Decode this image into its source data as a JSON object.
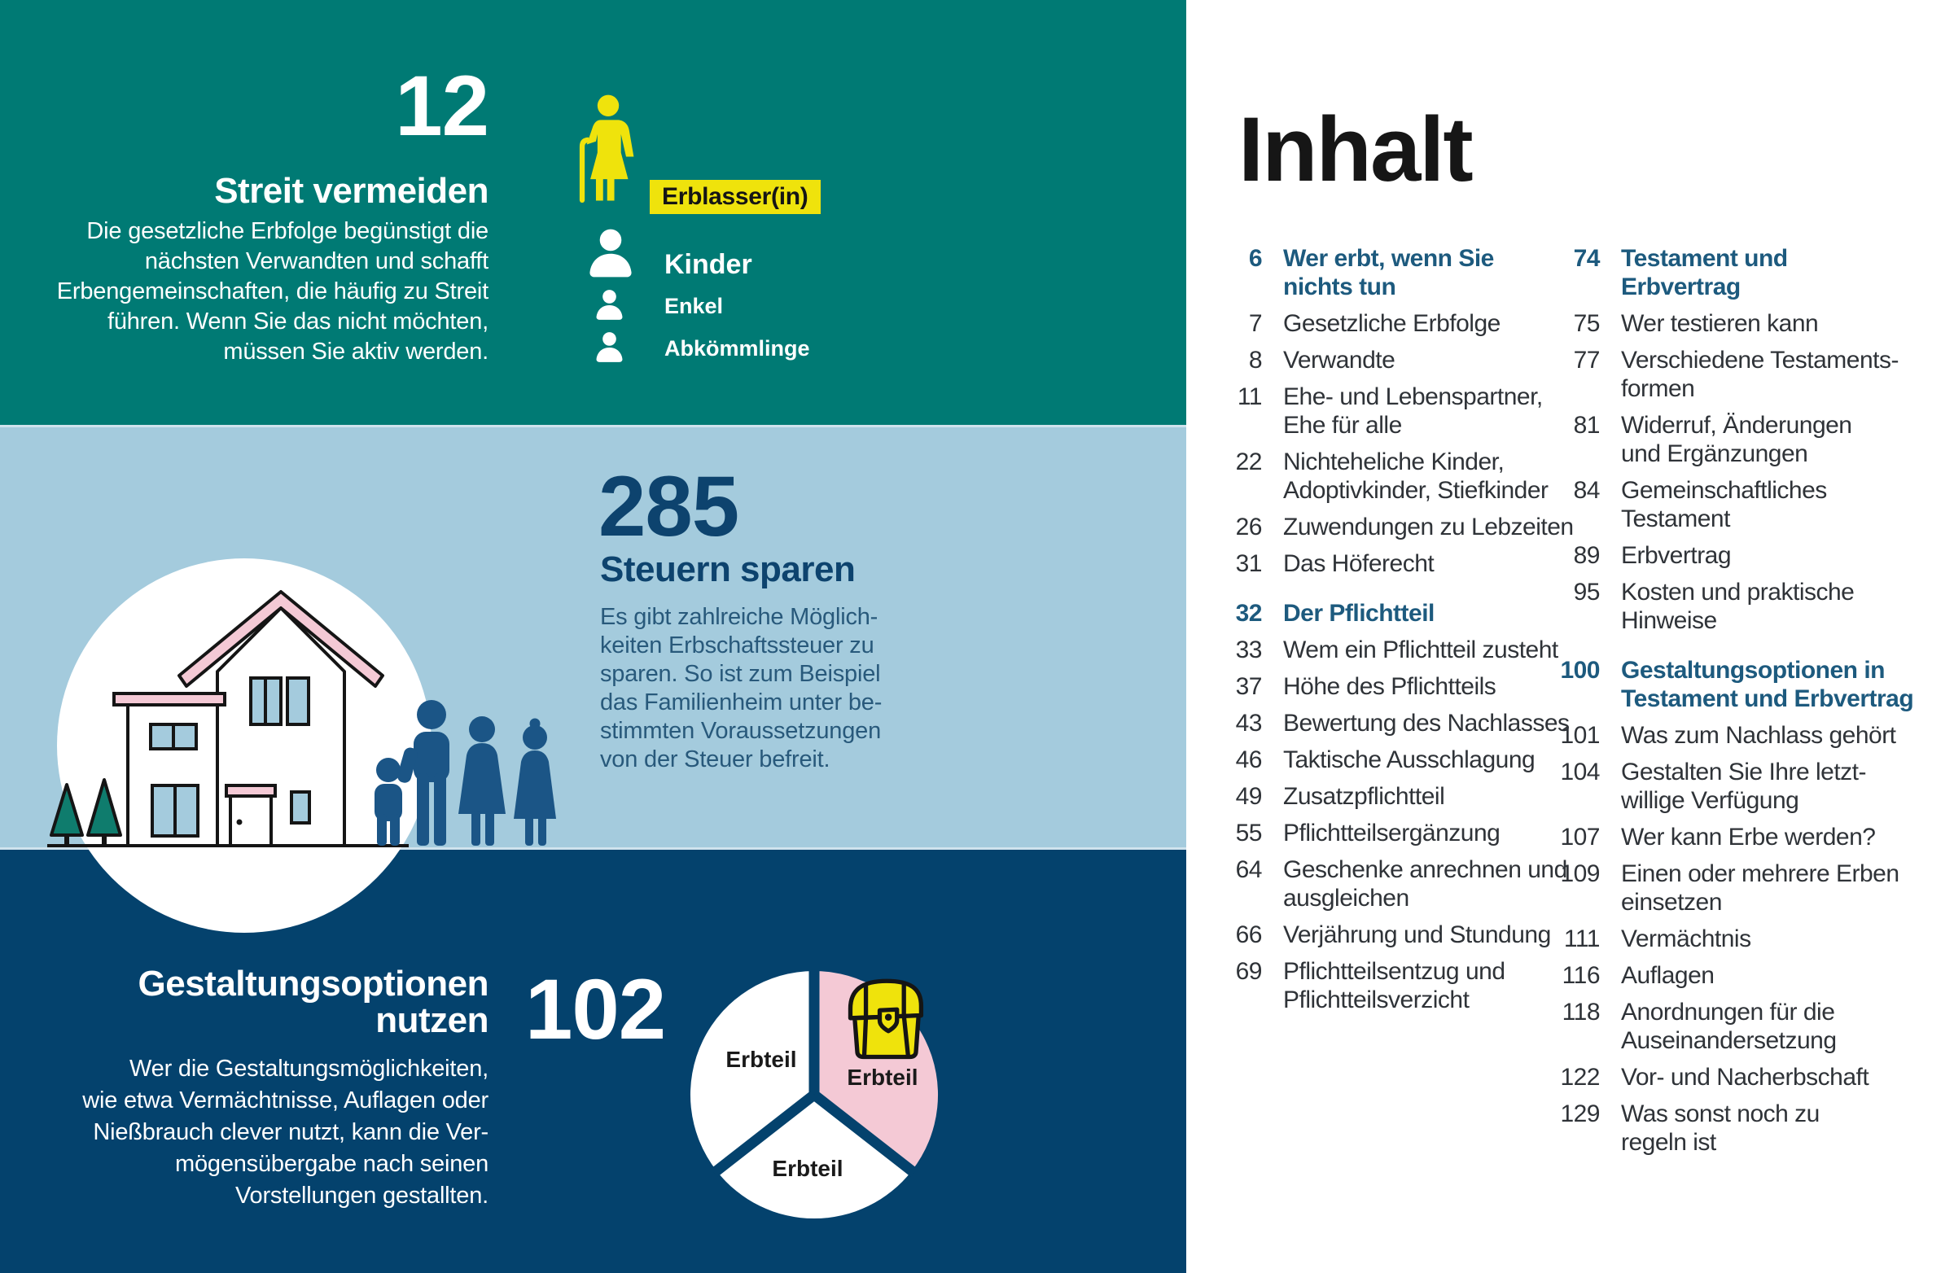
{
  "colors": {
    "teal": "#007a74",
    "light_blue": "#a4cbdd",
    "navy": "#04426d",
    "figure_blue": "#1b5586",
    "steel_blue": "#1d5a7e",
    "yellow": "#efe30c",
    "pink": "#f4c9d5",
    "tree_green": "#0f7c6d",
    "toc_text": "#2f3338",
    "body_blue": "#28597b",
    "number_navy": "#0d436e"
  },
  "infographic": {
    "panel_streit": {
      "number": "12",
      "title": "Streit vermeiden",
      "body": "Die gesetzliche Erbfolge begünstigt die\nnächsten Verwandten und schafft\nErbengemeinschaften, die häufig zu Streit\nführen. Wenn Sie das nicht möchten,\nmüssen Sie aktiv werden.",
      "legend": {
        "erblasser": {
          "label": "Erblasser(in)",
          "icon": "elderly-woman-cane-icon"
        },
        "items": [
          {
            "label": "Kinder",
            "icon": "person-bust-icon",
            "size": "large"
          },
          {
            "label": "Enkel",
            "icon": "person-bust-icon",
            "size": "small"
          },
          {
            "label": "Abkömmlinge",
            "icon": "person-bust-icon",
            "size": "small"
          }
        ]
      }
    },
    "panel_steuern": {
      "number": "285",
      "title": "Steuern sparen",
      "body": "Es gibt zahlreiche Möglich-\nkeiten Erbschaftssteuer zu\nsparen. So ist zum Beispiel\ndas Familienheim unter be-\nstimmten Voraussetzungen\nvon der Steuer befreit.",
      "illustration": "house-family-trees-in-circle"
    },
    "panel_gestaltung": {
      "number": "102",
      "title": "Gestaltungsoptionen\nnutzen",
      "body": "Wer die Gestaltungsmöglichkeiten,\nwie etwa Vermächtnisse, Auflagen oder\nNießbrauch clever nutzt, kann die Ver-\nmögensübergabe nach seinen\nVorstellungen gestallten.",
      "pie": {
        "type": "pie",
        "slices": [
          {
            "label": "Erbteil",
            "color": "white"
          },
          {
            "label": "Erbteil",
            "color": "pink",
            "icon": "treasure-chest-icon"
          },
          {
            "label": "Erbteil",
            "color": "white"
          }
        ]
      }
    }
  },
  "toc": {
    "title": "Inhalt",
    "columns": [
      {
        "sections": [
          {
            "page": "6",
            "title": "Wer erbt, wenn Sie\nnichts tun",
            "items": [
              {
                "page": "7",
                "title": "Gesetzliche Erbfolge"
              },
              {
                "page": "8",
                "title": "Verwandte"
              },
              {
                "page": "11",
                "title": "Ehe- und Lebenspartner,\nEhe für alle"
              },
              {
                "page": "22",
                "title": "Nichteheliche Kinder,\nAdoptivkinder, Stiefkinder"
              },
              {
                "page": "26",
                "title": "Zuwendungen zu Lebzeiten"
              },
              {
                "page": "31",
                "title": "Das Höferecht"
              }
            ]
          },
          {
            "page": "32",
            "title": "Der Pflichtteil",
            "items": [
              {
                "page": "33",
                "title": "Wem ein Pflichtteil zusteht"
              },
              {
                "page": "37",
                "title": "Höhe des Pflichtteils"
              },
              {
                "page": "43",
                "title": "Bewertung des Nachlasses"
              },
              {
                "page": "46",
                "title": "Taktische Ausschlagung"
              },
              {
                "page": "49",
                "title": "Zusatzpflichtteil"
              },
              {
                "page": "55",
                "title": "Pflichtteilsergänzung"
              },
              {
                "page": "64",
                "title": "Geschenke anrechnen und\nausgleichen"
              },
              {
                "page": "66",
                "title": "Verjährung und Stundung"
              },
              {
                "page": "69",
                "title": "Pflichtteilsentzug und\nPflichtteilsverzicht"
              }
            ]
          }
        ]
      },
      {
        "sections": [
          {
            "page": "74",
            "title": "Testament und\nErbvertrag",
            "items": [
              {
                "page": "75",
                "title": "Wer testieren kann"
              },
              {
                "page": "77",
                "title": "Verschiedene Testaments-\nformen"
              },
              {
                "page": "81",
                "title": "Widerruf, Änderungen\nund Ergänzungen"
              },
              {
                "page": "84",
                "title": "Gemeinschaftliches\nTestament"
              },
              {
                "page": "89",
                "title": "Erbvertrag"
              },
              {
                "page": "95",
                "title": "Kosten und praktische\nHinweise"
              }
            ]
          },
          {
            "page": "100",
            "title": "Gestaltungsoptionen in\nTestament und Erbvertrag",
            "items": [
              {
                "page": "101",
                "title": "Was zum Nachlass gehört"
              },
              {
                "page": "104",
                "title": "Gestalten Sie Ihre letzt-\nwillige Verfügung"
              },
              {
                "page": "107",
                "title": "Wer kann Erbe werden?"
              },
              {
                "page": "109",
                "title": "Einen oder mehrere Erben\neinsetzen"
              },
              {
                "page": "111",
                "title": "Vermächtnis"
              },
              {
                "page": "116",
                "title": "Auflagen"
              },
              {
                "page": "118",
                "title": "Anordnungen für die\nAuseinandersetzung"
              },
              {
                "page": "122",
                "title": "Vor- und Nacherbschaft"
              },
              {
                "page": "129",
                "title": "Was sonst noch zu\nregeln ist"
              }
            ]
          }
        ]
      }
    ]
  }
}
